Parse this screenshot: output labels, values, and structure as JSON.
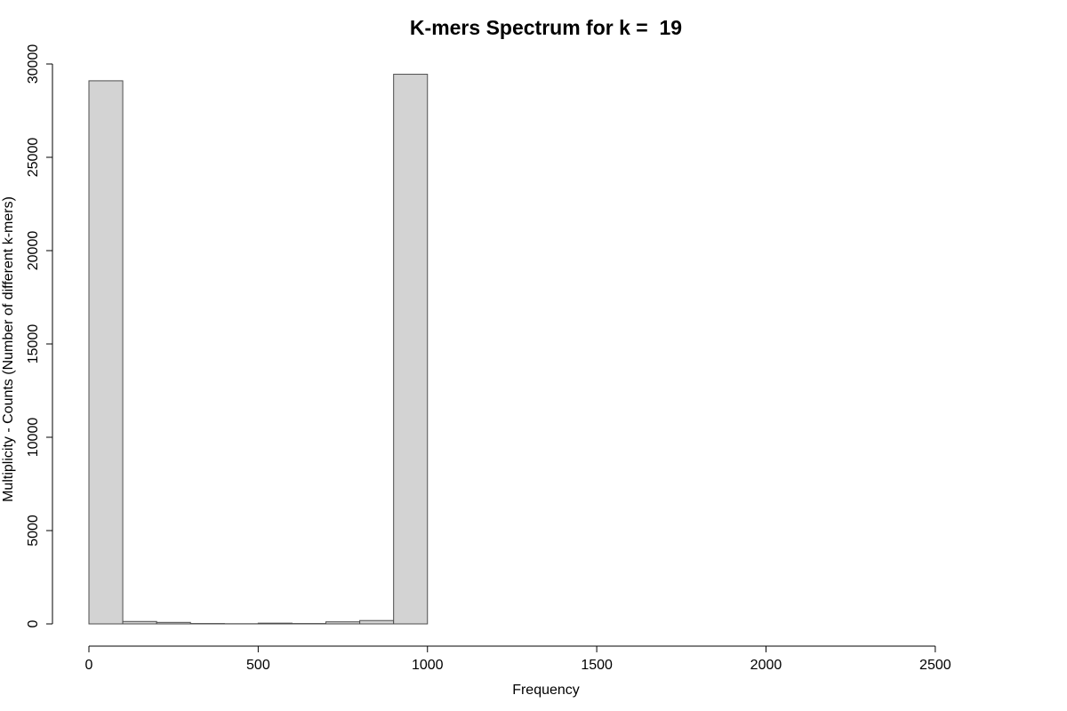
{
  "chart_data": {
    "type": "bar",
    "title": "K-mers Spectrum for k =  19",
    "xlabel": "Frequency",
    "ylabel": "Multiplicity - Counts (Number of different k-mers)",
    "bin_width": 100,
    "bins": [
      {
        "x0": 0,
        "x1": 100,
        "count": 29100
      },
      {
        "x0": 100,
        "x1": 200,
        "count": 130
      },
      {
        "x0": 200,
        "x1": 300,
        "count": 80
      },
      {
        "x0": 300,
        "x1": 400,
        "count": 20
      },
      {
        "x0": 400,
        "x1": 500,
        "count": 10
      },
      {
        "x0": 500,
        "x1": 600,
        "count": 40
      },
      {
        "x0": 600,
        "x1": 700,
        "count": 20
      },
      {
        "x0": 700,
        "x1": 800,
        "count": 110
      },
      {
        "x0": 800,
        "x1": 900,
        "count": 180
      },
      {
        "x0": 900,
        "x1": 1000,
        "count": 29450
      },
      {
        "x0": 1000,
        "x1": 1100,
        "count": 0
      },
      {
        "x0": 1100,
        "x1": 1200,
        "count": 0
      },
      {
        "x0": 1200,
        "x1": 1300,
        "count": 0
      },
      {
        "x0": 1300,
        "x1": 1400,
        "count": 0
      },
      {
        "x0": 1400,
        "x1": 1500,
        "count": 0
      },
      {
        "x0": 1500,
        "x1": 1600,
        "count": 0
      },
      {
        "x0": 1600,
        "x1": 1700,
        "count": 0
      },
      {
        "x0": 1700,
        "x1": 1800,
        "count": 0
      },
      {
        "x0": 1800,
        "x1": 1900,
        "count": 0
      },
      {
        "x0": 1900,
        "x1": 2000,
        "count": 0
      },
      {
        "x0": 2000,
        "x1": 2100,
        "count": 0
      },
      {
        "x0": 2100,
        "x1": 2200,
        "count": 0
      },
      {
        "x0": 2200,
        "x1": 2300,
        "count": 0
      },
      {
        "x0": 2300,
        "x1": 2400,
        "count": 0
      },
      {
        "x0": 2400,
        "x1": 2500,
        "count": 0
      },
      {
        "x0": 2500,
        "x1": 2600,
        "count": 0
      },
      {
        "x0": 2600,
        "x1": 2700,
        "count": 0
      }
    ],
    "xlim": [
      0,
      2700
    ],
    "ylim": [
      0,
      30000
    ],
    "x_ticks": [
      0,
      500,
      1000,
      1500,
      2000,
      2500
    ],
    "y_ticks": [
      0,
      5000,
      10000,
      15000,
      20000,
      25000,
      30000
    ],
    "bar_fill": "#d3d3d3",
    "bar_border": "#4d4d4d",
    "grid": false,
    "legend": "none"
  }
}
